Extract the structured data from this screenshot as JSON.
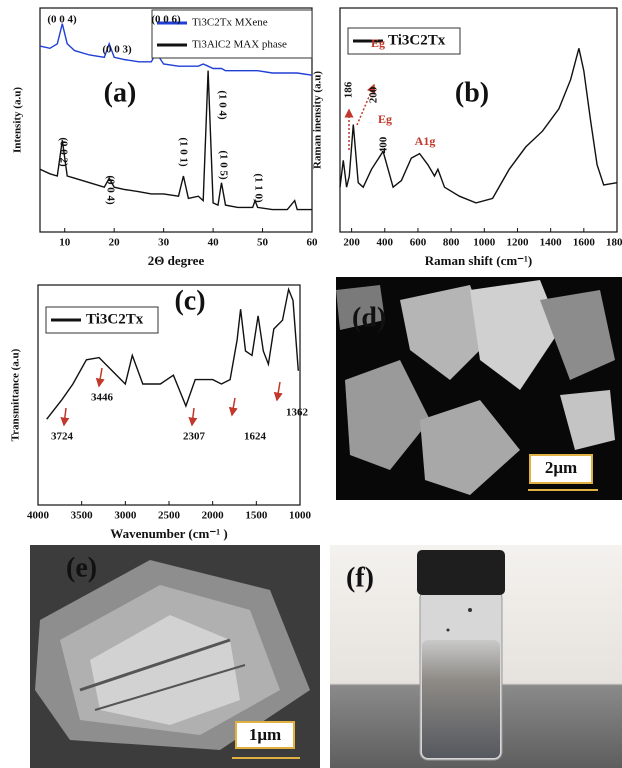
{
  "chart_data": [
    {
      "type": "line",
      "x_label": "2Θ degree",
      "y_label": "Intensity (a.u)",
      "x": [
        5,
        7,
        8.5,
        9.5,
        10.5,
        12,
        15,
        18,
        19,
        20,
        22,
        25,
        27.5,
        28.5,
        30,
        33,
        34,
        35,
        37,
        38,
        39,
        40,
        41,
        41.7,
        42.5,
        45,
        48,
        48.5,
        49,
        52,
        55,
        56.5,
        57,
        60
      ],
      "series": [
        {
          "name": "Ti3C2Tx MXene",
          "color": "#1f3fd6",
          "values": [
            83,
            82,
            84,
            93,
            84,
            81,
            79,
            78,
            84,
            78,
            77,
            76,
            76,
            80,
            75,
            74,
            74,
            74,
            74,
            75,
            74,
            73,
            73,
            73,
            72,
            72,
            72,
            72,
            72,
            71,
            71,
            71,
            71,
            70
          ]
        },
        {
          "name": "Ti3AlC2 MAX phase",
          "color": "#111111",
          "values": [
            28,
            26,
            25,
            41,
            25,
            24,
            22,
            20,
            24,
            20,
            19,
            18,
            17,
            17,
            17,
            16,
            25,
            15,
            16,
            14,
            72,
            13,
            12,
            22,
            12,
            11,
            11,
            14,
            11,
            10,
            10,
            14,
            10,
            10
          ]
        }
      ],
      "xlim": [
        5,
        60
      ],
      "xticks": [
        10,
        20,
        30,
        40,
        50,
        60
      ],
      "ylim": [
        0,
        100
      ],
      "legend": "upper right",
      "annotations": [
        "(0 0 4)",
        "(0 0 3)",
        "(0 0 6)",
        "(a)",
        "(0 0 2)",
        "(0 0 4)",
        "(1 0 1)",
        "(1 0 4)",
        "(1 0 5)",
        "(1 1 0)"
      ]
    },
    {
      "type": "line",
      "x_label": "Raman shift (cm⁻¹)",
      "y_label": "Raman inensity (a.u)",
      "x": [
        130,
        150,
        170,
        186,
        210,
        240,
        270,
        320,
        390,
        450,
        500,
        560,
        610,
        660,
        700,
        720,
        760,
        850,
        950,
        1050,
        1150,
        1250,
        1350,
        1450,
        1520,
        1570,
        1600,
        1640,
        1680,
        1720,
        1800
      ],
      "series": [
        {
          "name": "Ti3C2Tx",
          "color": "#111111",
          "values": [
            20,
            32,
            20,
            25,
            48,
            22,
            20,
            28,
            36,
            20,
            23,
            33,
            35,
            30,
            25,
            28,
            20,
            16,
            13,
            15,
            28,
            38,
            45,
            55,
            68,
            82,
            72,
            50,
            30,
            21,
            22
          ]
        }
      ],
      "xlim": [
        130,
        1800
      ],
      "xticks": [
        200,
        400,
        600,
        800,
        1000,
        1200,
        1400,
        1600,
        1800
      ],
      "ylim": [
        0,
        100
      ],
      "legend": "upper left",
      "annotations": [
        "186",
        "200",
        "Eg",
        "400",
        "Eg",
        "A1g",
        "(b)"
      ]
    },
    {
      "type": "line",
      "x_label": "Wavenumber (cm⁻¹ )",
      "y_label": "Transmittance (a.u)",
      "x": [
        3900,
        3724,
        3600,
        3446,
        3300,
        3100,
        3000,
        2920,
        2800,
        2600,
        2450,
        2307,
        2200,
        2000,
        1900,
        1800,
        1720,
        1680,
        1624,
        1550,
        1480,
        1420,
        1362,
        1300,
        1200,
        1130,
        1080,
        1020
      ],
      "series": [
        {
          "name": "Ti3C2Tx",
          "color": "#111111",
          "values": [
            39,
            48,
            55,
            66,
            67,
            59,
            55,
            68,
            55,
            55,
            59,
            45,
            57,
            57,
            55,
            57,
            75,
            89,
            70,
            68,
            86,
            70,
            64,
            80,
            84,
            98,
            93,
            61
          ]
        }
      ],
      "xlim": [
        4000,
        1000
      ],
      "xticks": [
        4000,
        3500,
        3000,
        2500,
        2000,
        1500,
        1000
      ],
      "ylim": [
        0,
        100
      ],
      "legend": "upper left",
      "annotations": [
        "(c)",
        "3724",
        "3446",
        "2307",
        "1624",
        "1362"
      ]
    }
  ],
  "images": [
    {
      "label": "(d)",
      "scale_bar": "2μm"
    },
    {
      "label": "(e)",
      "scale_bar": "1μm"
    },
    {
      "label": "(f)"
    }
  ]
}
